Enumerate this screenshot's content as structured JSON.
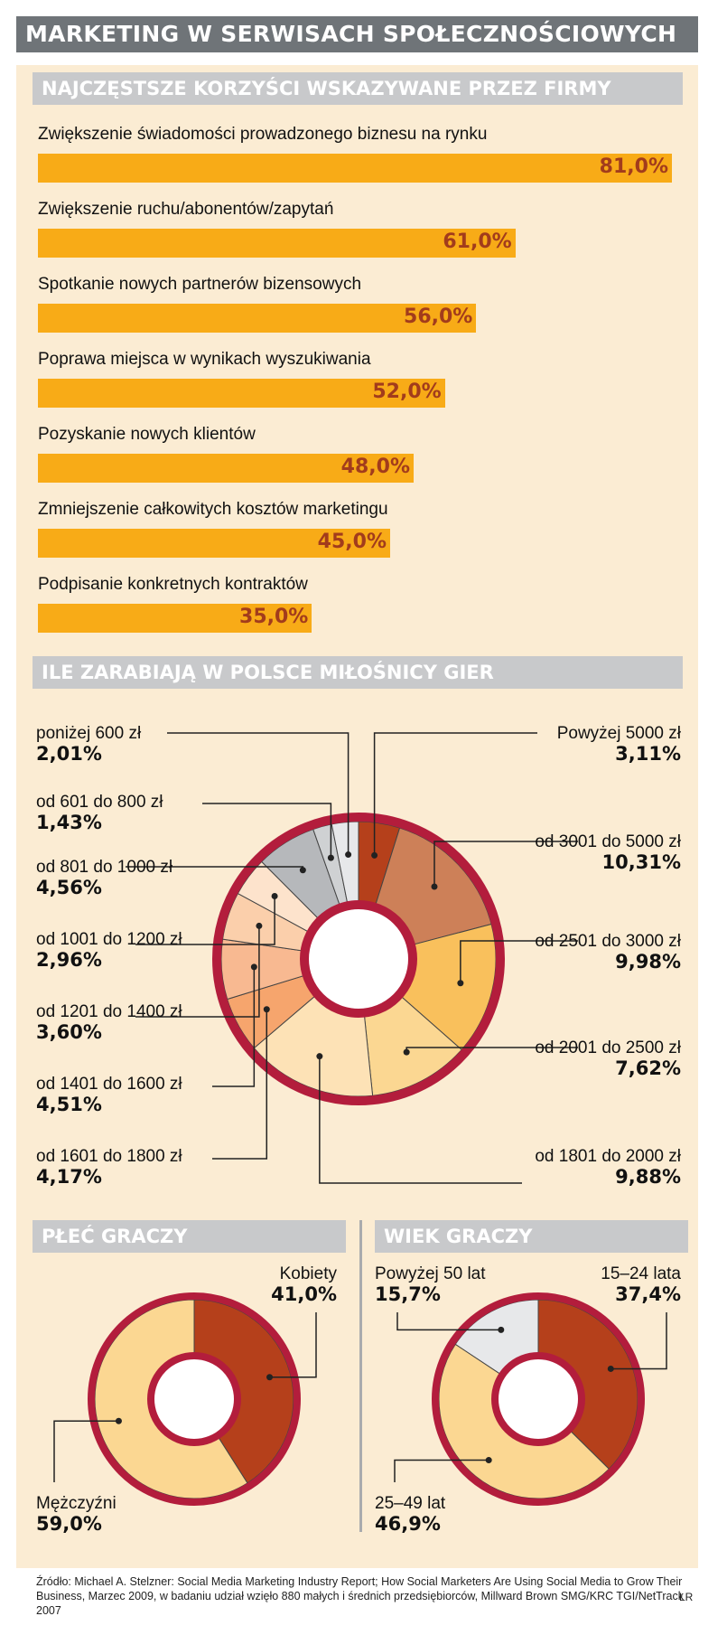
{
  "title": "MARKETING W SERWISACH SPOŁECZNOŚCIOWYCH",
  "source": "Źródło: Michael A. Stelzner: Social Media Marketing Industry Report; How Social Marketers Are Using Social Media to Grow Their Business, Marzec 2009, w badaniu udział wzięło 880 małych i średnich przedsiębiorców, Millward Brown SMG/KRC TGI/NetTrack 2007",
  "author": "ŁR",
  "colors": {
    "bar": "#f8ab17",
    "value_text": "#a23c1c",
    "ring": "#b31d3c",
    "panel": "#fbecd3",
    "header": "#c8c9cb",
    "title_bg": "#6f7478"
  },
  "chart_data": [
    {
      "type": "bar",
      "title": "NAJCZĘSTSZE KORZYŚCI WSKAZYWANE PRZEZ FIRMY",
      "categories": [
        "Zwiększenie świadomości prowadzonego biznesu na rynku",
        "Zwiększenie ruchu/abonentów/zapytań",
        "Spotkanie nowych partnerów bizensowych",
        "Poprawa miejsca w wynikach wyszukiwania",
        "Pozyskanie nowych klientów",
        "Zmniejszenie całkowitych kosztów marketingu",
        "Podpisanie konkretnych kontraktów"
      ],
      "values": [
        81.0,
        61.0,
        56.0,
        52.0,
        48.0,
        45.0,
        35.0
      ],
      "value_labels": [
        "81,0%",
        "61,0%",
        "56,0%",
        "52,0%",
        "48,0%",
        "45,0%",
        "35,0%"
      ],
      "orientation": "horizontal"
    },
    {
      "type": "pie",
      "title": "ILE ZARABIAJĄ W POLSCE MIŁOŚNICY GIER",
      "donut": true,
      "slices": [
        {
          "name": "Powyżej 5000 zł",
          "value": 3.11,
          "label": "3,11%",
          "color": "#b5401b"
        },
        {
          "name": "od 3001 do 5000 zł",
          "value": 10.31,
          "label": "10,31%",
          "color": "#cd8058"
        },
        {
          "name": "od 2501 do 3000 zł",
          "value": 9.98,
          "label": "9,98%",
          "color": "#f9c05c"
        },
        {
          "name": "od 2001 do 2500 zł",
          "value": 7.62,
          "label": "7,62%",
          "color": "#fbd792"
        },
        {
          "name": "od 1801 do 2000 zł",
          "value": 9.88,
          "label": "9,88%",
          "color": "#fde2b6"
        },
        {
          "name": "od 1601 do 1800 zł",
          "value": 4.17,
          "label": "4,17%",
          "color": "#f6a56d"
        },
        {
          "name": "od 1401 do 1600 zł",
          "value": 4.51,
          "label": "4,51%",
          "color": "#f8b991"
        },
        {
          "name": "od 1201 do 1400 zł",
          "value": 3.6,
          "label": "3,60%",
          "color": "#fbcfab"
        },
        {
          "name": "od 1001 do 1200 zł",
          "value": 2.96,
          "label": "2,96%",
          "color": "#fde3cc"
        },
        {
          "name": "od 801 do 1000 zł",
          "value": 4.56,
          "label": "4,56%",
          "color": "#b6b8bb"
        },
        {
          "name": "od 601 do 800 zł",
          "value": 1.43,
          "label": "1,43%",
          "color": "#cfd1d3"
        },
        {
          "name": "poniżej 600 zł",
          "value": 2.01,
          "label": "2,01%",
          "color": "#e7e8ea"
        }
      ]
    },
    {
      "type": "pie",
      "title": "PŁEĆ GRACZY",
      "donut": true,
      "slices": [
        {
          "name": "Kobiety",
          "value": 41.0,
          "label": "41,0%",
          "color": "#b5401b"
        },
        {
          "name": "Mężczyźni",
          "value": 59.0,
          "label": "59,0%",
          "color": "#fbd792"
        }
      ]
    },
    {
      "type": "pie",
      "title": "WIEK GRACZY",
      "donut": true,
      "slices": [
        {
          "name": "15–24 lata",
          "value": 37.4,
          "label": "37,4%",
          "color": "#b5401b"
        },
        {
          "name": "25–49 lat",
          "value": 46.9,
          "label": "46,9%",
          "color": "#fbd792"
        },
        {
          "name": "Powyżej 50 lat",
          "value": 15.7,
          "label": "15,7%",
          "color": "#e7e8ea"
        }
      ]
    }
  ]
}
